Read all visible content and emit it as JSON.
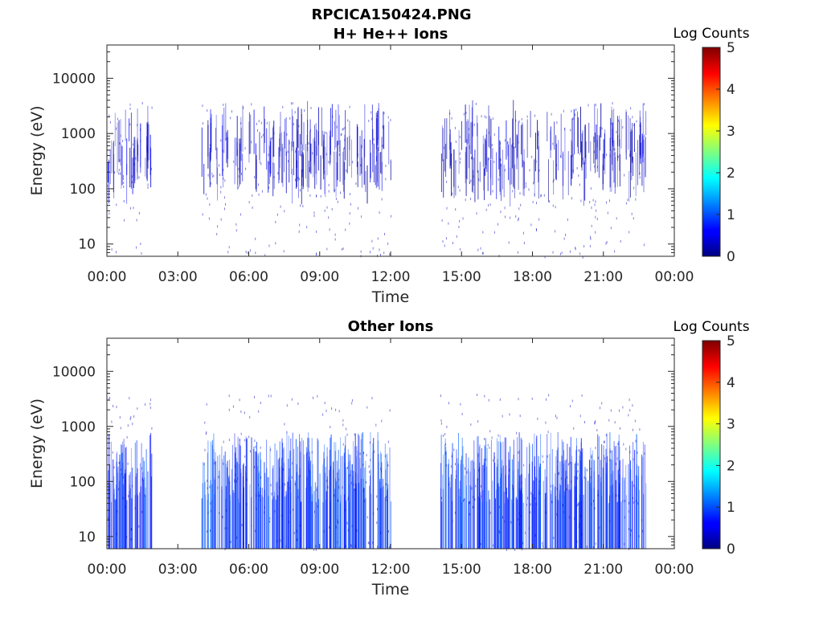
{
  "figure": {
    "title_line1": "RPCICA150424.PNG",
    "colorbar_label": "Log Counts",
    "colorbar_ticks": [
      "0",
      "1",
      "2",
      "3",
      "4",
      "5"
    ]
  },
  "chart_data": [
    {
      "type": "heatmap",
      "title": "H+ He++ Ions",
      "xlabel": "Time",
      "ylabel": "Energy (eV)",
      "x_ticks": [
        "00:00",
        "03:00",
        "06:00",
        "09:00",
        "12:00",
        "15:00",
        "18:00",
        "21:00",
        "00:00"
      ],
      "xlim_hours": [
        0,
        24
      ],
      "y_scale": "log",
      "ylim": [
        6,
        40000
      ],
      "y_ticks": [
        10,
        100,
        1000,
        10000
      ],
      "y_tick_labels": [
        "10",
        "100",
        "1000",
        "10000"
      ],
      "colorbar": {
        "label": "Log Counts",
        "range": [
          0,
          5
        ]
      },
      "data_coverage_hours": [
        [
          0,
          1.9
        ],
        [
          4.0,
          12.0
        ],
        [
          14.1,
          22.8
        ]
      ],
      "typical_log_counts": 0.3
    },
    {
      "type": "heatmap",
      "title": "Other Ions",
      "xlabel": "Time",
      "ylabel": "Energy (eV)",
      "x_ticks": [
        "00:00",
        "03:00",
        "06:00",
        "09:00",
        "12:00",
        "15:00",
        "18:00",
        "21:00",
        "00:00"
      ],
      "xlim_hours": [
        0,
        24
      ],
      "y_scale": "log",
      "ylim": [
        6,
        40000
      ],
      "y_ticks": [
        10,
        100,
        1000,
        10000
      ],
      "y_tick_labels": [
        "10",
        "100",
        "1000",
        "10000"
      ],
      "colorbar": {
        "label": "Log Counts",
        "range": [
          0,
          5
        ]
      },
      "data_coverage_hours": [
        [
          0,
          1.9
        ],
        [
          4.0,
          12.0
        ],
        [
          14.1,
          22.8
        ]
      ],
      "typical_log_counts": 0.8
    }
  ]
}
